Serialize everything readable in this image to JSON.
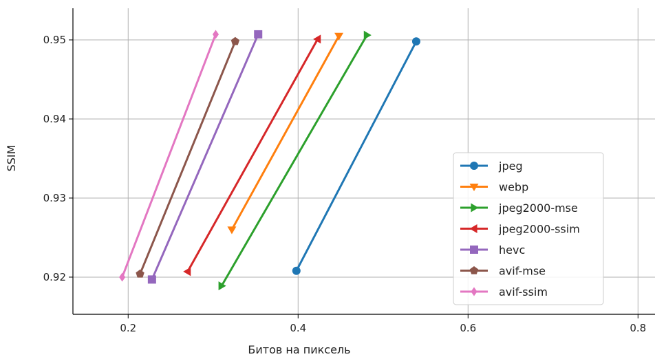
{
  "chart_data": {
    "type": "line",
    "xlabel": "Битов на пиксель",
    "ylabel": "SSIM",
    "xlim": [
      0.135,
      0.82
    ],
    "ylim": [
      0.9153,
      0.954
    ],
    "xticks": [
      0.2,
      0.4,
      0.6,
      0.8
    ],
    "xtick_labels": [
      "0.2",
      "0.4",
      "0.6",
      "0.8"
    ],
    "yticks": [
      0.92,
      0.93,
      0.94,
      0.95
    ],
    "ytick_labels": [
      "0.92",
      "0.93",
      "0.94",
      "0.95"
    ],
    "grid": true,
    "legend_position": "lower-right",
    "series": [
      {
        "name": "jpeg",
        "color": "#1f77b4",
        "marker": "circle",
        "x": [
          0.398,
          0.539
        ],
        "y": [
          0.9208,
          0.9498
        ]
      },
      {
        "name": "webp",
        "color": "#ff7f0e",
        "marker": "triangle-down",
        "x": [
          0.322,
          0.448
        ],
        "y": [
          0.926,
          0.9505
        ]
      },
      {
        "name": "jpeg2000-mse",
        "color": "#2ca02c",
        "marker": "triangle-right",
        "x": [
          0.31,
          0.481
        ],
        "y": [
          0.9189,
          0.9506
        ]
      },
      {
        "name": "jpeg2000-ssim",
        "color": "#d62728",
        "marker": "triangle-left",
        "x": [
          0.27,
          0.423
        ],
        "y": [
          0.9207,
          0.9501
        ]
      },
      {
        "name": "hevc",
        "color": "#9467bd",
        "marker": "square",
        "x": [
          0.228,
          0.353
        ],
        "y": [
          0.9197,
          0.9507
        ]
      },
      {
        "name": "avif-mse",
        "color": "#8c564b",
        "marker": "pentagon",
        "x": [
          0.214,
          0.326
        ],
        "y": [
          0.9204,
          0.9498
        ]
      },
      {
        "name": "avif-ssim",
        "color": "#e377c2",
        "marker": "diamond",
        "x": [
          0.193,
          0.303
        ],
        "y": [
          0.92,
          0.9507
        ]
      }
    ]
  }
}
